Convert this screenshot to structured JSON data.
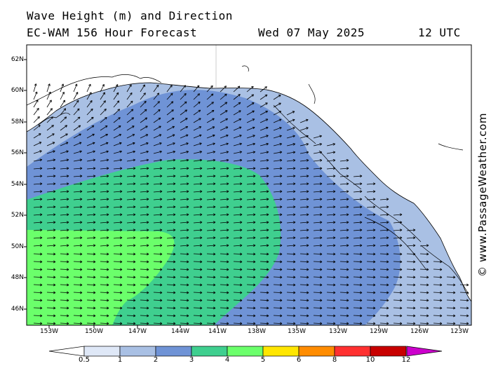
{
  "header": {
    "title": "Wave Height (m) and Direction",
    "model": "EC-WAM 156 Hour Forecast",
    "date": "Wed 07 May 2025",
    "time": "12 UTC"
  },
  "credit": "© www.PassageWeather.com",
  "map": {
    "latitude_labels": [
      "62N",
      "60N",
      "58N",
      "56N",
      "54N",
      "52N",
      "50N",
      "48N",
      "46N"
    ],
    "longitude_labels": [
      "153W",
      "150W",
      "147W",
      "144W",
      "141W",
      "138W",
      "135W",
      "132W",
      "129W",
      "126W",
      "123W"
    ],
    "land_color": "#ffffff",
    "coast_color": "#000000",
    "arrow_direction": "generally eastward in the south, turning northward near the Alaska coast"
  },
  "legend": {
    "labels": [
      "0.5",
      "1",
      "2",
      "3",
      "4",
      "5",
      "6",
      "8",
      "10",
      "12"
    ],
    "colors": [
      "#dfe8f7",
      "#a9c0e4",
      "#6f93d6",
      "#3fcf8f",
      "#6bff6b",
      "#ffe600",
      "#ff8c00",
      "#ff3030",
      "#c80000",
      "#cc00cc"
    ]
  }
}
